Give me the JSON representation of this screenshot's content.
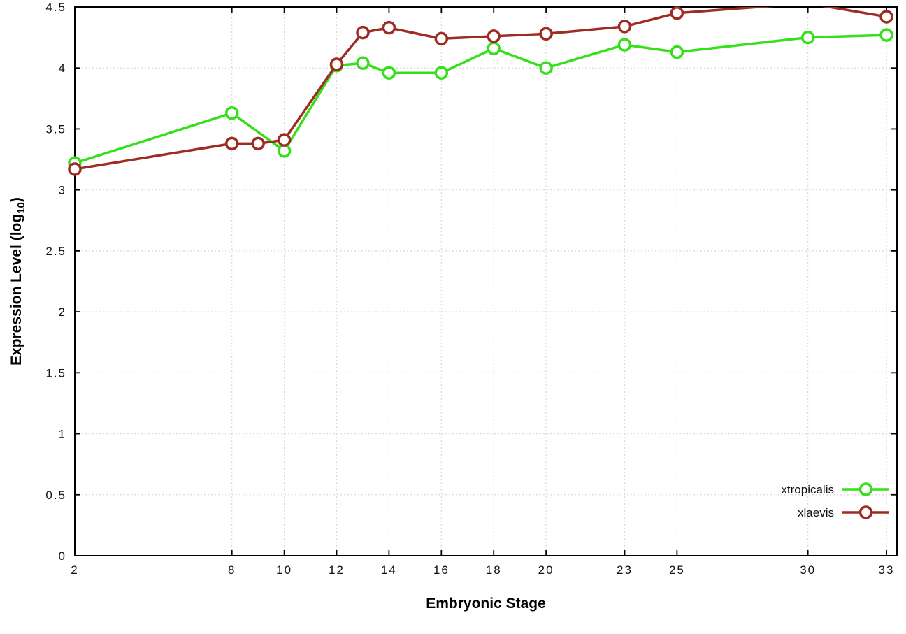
{
  "chart_data": {
    "type": "line",
    "title": "",
    "xlabel": "Embryonic Stage",
    "ylabel": "Expression Level (log10)",
    "ylabel_parts": {
      "prefix": "Expression Level (log",
      "sub": "10",
      "suffix": ")"
    },
    "xlim": [
      2,
      33.4
    ],
    "ylim": [
      0,
      4.5
    ],
    "xticks": [
      2,
      8,
      10,
      12,
      14,
      16,
      18,
      20,
      23,
      25,
      30,
      33
    ],
    "yticks": [
      0,
      0.5,
      1,
      1.5,
      2,
      2.5,
      3,
      3.5,
      4,
      4.5
    ],
    "grid": true,
    "legend_position": "bottom-right",
    "series": [
      {
        "name": "xtropicalis",
        "color": "#35e01a",
        "x": [
          2,
          8,
          10,
          12,
          13,
          14,
          16,
          18,
          20,
          23,
          25,
          30,
          33
        ],
        "y": [
          3.22,
          3.63,
          3.32,
          4.02,
          4.04,
          3.96,
          3.96,
          4.16,
          4.0,
          4.19,
          4.13,
          4.25,
          4.27
        ]
      },
      {
        "name": "xlaevis",
        "color": "#9e2c23",
        "x": [
          2,
          8,
          9,
          10,
          12,
          13,
          14,
          16,
          18,
          20,
          23,
          25,
          30,
          33
        ],
        "y": [
          3.17,
          3.38,
          3.38,
          3.41,
          4.03,
          4.29,
          4.33,
          4.24,
          4.26,
          4.28,
          4.34,
          4.45,
          4.53,
          4.42
        ]
      }
    ]
  }
}
